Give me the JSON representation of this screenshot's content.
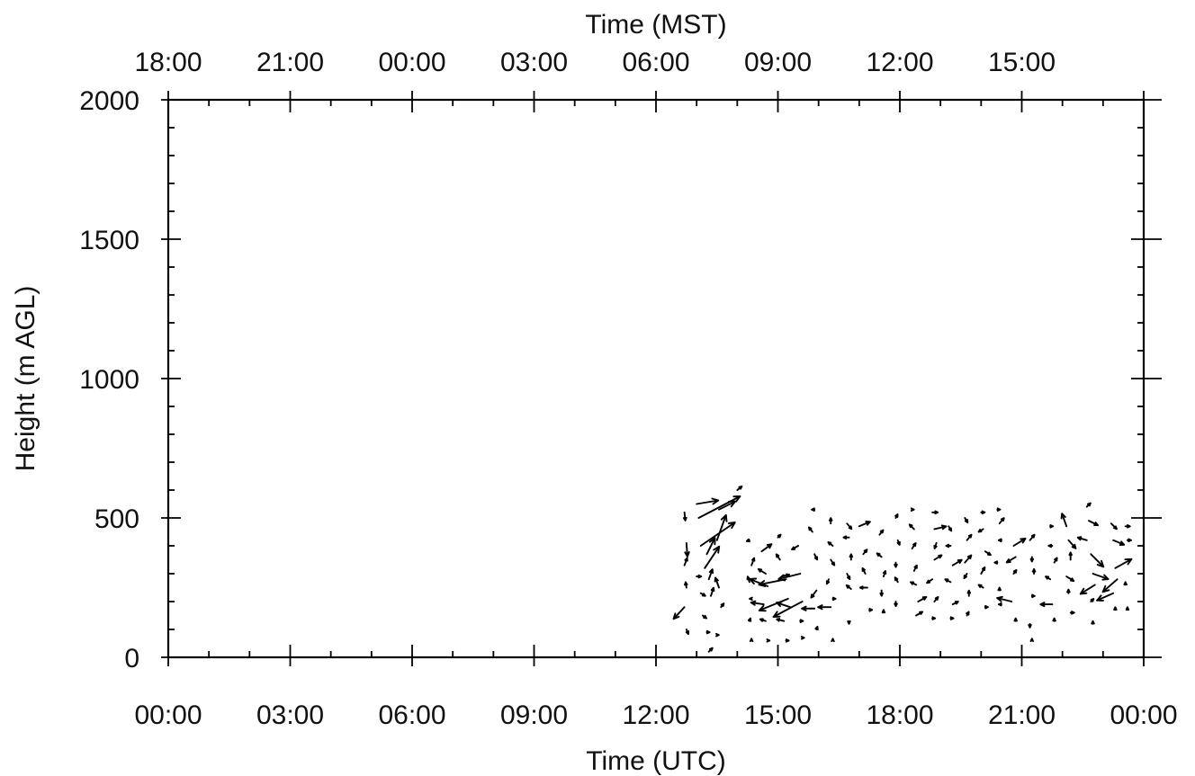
{
  "colors": {
    "ink": "#000000",
    "background": "#ffffff"
  },
  "chart_data": {
    "type": "scatter",
    "subtype": "wind-vector (quiver) time-height plot",
    "title": "",
    "xlabel": "Time (UTC)",
    "x2label": "Time (MST)",
    "ylabel": "Height (m AGL)",
    "xlim_hours_utc": [
      0,
      24
    ],
    "ylim": [
      0,
      2000
    ],
    "grid": false,
    "legend": "none",
    "x_ticks": {
      "hours": [
        0,
        3,
        6,
        9,
        12,
        15,
        18,
        21,
        24
      ],
      "labels": [
        "00:00",
        "03:00",
        "06:00",
        "09:00",
        "12:00",
        "15:00",
        "18:00",
        "21:00",
        "00:00"
      ]
    },
    "x2_ticks": {
      "hours": [
        0,
        3,
        6,
        9,
        12,
        15,
        18,
        21
      ],
      "labels": [
        "18:00",
        "21:00",
        "00:00",
        "03:00",
        "06:00",
        "09:00",
        "12:00",
        "15:00"
      ]
    },
    "y_ticks": {
      "values": [
        0,
        500,
        1000,
        1500,
        2000
      ],
      "labels": [
        "0",
        "500",
        "1000",
        "1500",
        "2000"
      ]
    },
    "vector_units_note": "u, v are relative arrow components read from the figure (arbitrary wind-speed units)",
    "vectors": [
      {
        "t": 12.7,
        "h": 520,
        "u": 0.1,
        "v": -0.9
      },
      {
        "t": 12.75,
        "h": 410,
        "u": 0.1,
        "v": -1.5
      },
      {
        "t": 12.7,
        "h": 330,
        "u": 0.3,
        "v": 0.8
      },
      {
        "t": 12.75,
        "h": 250,
        "u": -0.1,
        "v": 0.6
      },
      {
        "t": 12.7,
        "h": 180,
        "u": -1.2,
        "v": -1.3
      },
      {
        "t": 12.75,
        "h": 100,
        "u": 0.2,
        "v": -0.5
      },
      {
        "t": 13.0,
        "h": 550,
        "u": 2.4,
        "v": 0.4
      },
      {
        "t": 13.05,
        "h": 500,
        "u": 4.6,
        "v": 2.4
      },
      {
        "t": 13.1,
        "h": 400,
        "u": 3.8,
        "v": 2.6
      },
      {
        "t": 13.2,
        "h": 320,
        "u": 1.6,
        "v": 2.4
      },
      {
        "t": 13.25,
        "h": 370,
        "u": 0.9,
        "v": 1.8
      },
      {
        "t": 13.3,
        "h": 280,
        "u": 0.4,
        "v": 1.1
      },
      {
        "t": 13.35,
        "h": 220,
        "u": 0.3,
        "v": 0.9
      },
      {
        "t": 13.0,
        "h": 290,
        "u": 0.5,
        "v": 0.0
      },
      {
        "t": 13.1,
        "h": 230,
        "u": 0.5,
        "v": -0.3
      },
      {
        "t": 13.15,
        "h": 150,
        "u": 0.4,
        "v": -0.3
      },
      {
        "t": 13.25,
        "h": 90,
        "u": 0.3,
        "v": 0.0
      },
      {
        "t": 13.3,
        "h": 20,
        "u": 0.4,
        "v": 0.4
      },
      {
        "t": 13.5,
        "h": 80,
        "u": 0.2,
        "v": 0.0
      },
      {
        "t": 13.55,
        "h": 530,
        "u": 1.8,
        "v": 0.9
      },
      {
        "t": 13.5,
        "h": 420,
        "u": 1.0,
        "v": 2.8
      },
      {
        "t": 13.55,
        "h": 250,
        "u": -0.4,
        "v": 1.1
      },
      {
        "t": 13.6,
        "h": 180,
        "u": 0.3,
        "v": 0.4
      },
      {
        "t": 14.0,
        "h": 600,
        "u": 0.5,
        "v": 0.4
      },
      {
        "t": 14.3,
        "h": 420,
        "u": -0.3,
        "v": -0.1
      },
      {
        "t": 14.35,
        "h": 330,
        "u": 0.3,
        "v": 0.8
      },
      {
        "t": 14.3,
        "h": 270,
        "u": -0.2,
        "v": 0.6
      },
      {
        "t": 14.35,
        "h": 210,
        "u": -0.2,
        "v": 0.0
      },
      {
        "t": 14.3,
        "h": 130,
        "u": 0.1,
        "v": 0.3
      },
      {
        "t": 14.35,
        "h": 60,
        "u": 0.0,
        "v": 0.2
      },
      {
        "t": 14.6,
        "h": 380,
        "u": 1.1,
        "v": 0.8
      },
      {
        "t": 14.7,
        "h": 300,
        "u": -0.8,
        "v": 0.5
      },
      {
        "t": 14.75,
        "h": 255,
        "u": -2.0,
        "v": 0.8
      },
      {
        "t": 14.65,
        "h": 190,
        "u": -1.4,
        "v": 0.2
      },
      {
        "t": 14.7,
        "h": 130,
        "u": -0.6,
        "v": 0.2
      },
      {
        "t": 14.75,
        "h": 60,
        "u": 0.2,
        "v": 0.0
      },
      {
        "t": 15.0,
        "h": 430,
        "u": 0.3,
        "v": 0.3
      },
      {
        "t": 15.05,
        "h": 350,
        "u": -0.4,
        "v": 0.6
      },
      {
        "t": 15.1,
        "h": 290,
        "u": 0.8,
        "v": 0.2
      },
      {
        "t": 15.2,
        "h": 280,
        "u": -3.0,
        "v": -0.6
      },
      {
        "t": 15.25,
        "h": 210,
        "u": -3.2,
        "v": -1.3
      },
      {
        "t": 15.3,
        "h": 180,
        "u": -1.5,
        "v": 0.5
      },
      {
        "t": 15.15,
        "h": 130,
        "u": -0.8,
        "v": 0.2
      },
      {
        "t": 15.2,
        "h": 60,
        "u": 0.3,
        "v": 0.0
      },
      {
        "t": 15.5,
        "h": 400,
        "u": -0.7,
        "v": -0.4
      },
      {
        "t": 15.55,
        "h": 300,
        "u": -2.4,
        "v": -0.6
      },
      {
        "t": 15.6,
        "h": 200,
        "u": -3.2,
        "v": -1.7
      },
      {
        "t": 15.55,
        "h": 130,
        "u": 0.3,
        "v": 0.0
      },
      {
        "t": 15.6,
        "h": 70,
        "u": 0.2,
        "v": 0.0
      },
      {
        "t": 15.9,
        "h": 530,
        "u": -0.3,
        "v": 0.0
      },
      {
        "t": 15.85,
        "h": 450,
        "u": -0.4,
        "v": 0.5
      },
      {
        "t": 15.9,
        "h": 370,
        "u": 0.3,
        "v": -0.6
      },
      {
        "t": 15.95,
        "h": 240,
        "u": -0.6,
        "v": -0.8
      },
      {
        "t": 15.9,
        "h": 175,
        "u": -1.4,
        "v": 0.0
      },
      {
        "t": 15.95,
        "h": 100,
        "u": 0.1,
        "v": 0.3
      },
      {
        "t": 16.3,
        "h": 480,
        "u": 0.0,
        "v": 0.6
      },
      {
        "t": 16.35,
        "h": 400,
        "u": -0.5,
        "v": 0.4
      },
      {
        "t": 16.3,
        "h": 350,
        "u": 0.4,
        "v": -0.6
      },
      {
        "t": 16.25,
        "h": 280,
        "u": -0.2,
        "v": -0.5
      },
      {
        "t": 16.35,
        "h": 210,
        "u": 0.3,
        "v": 0.0
      },
      {
        "t": 16.3,
        "h": 180,
        "u": -1.4,
        "v": 0.0
      },
      {
        "t": 16.35,
        "h": 60,
        "u": 0.0,
        "v": 0.2
      },
      {
        "t": 16.7,
        "h": 480,
        "u": 0.5,
        "v": -0.6
      },
      {
        "t": 16.75,
        "h": 430,
        "u": -0.6,
        "v": 0.0
      },
      {
        "t": 16.8,
        "h": 350,
        "u": 0.0,
        "v": 0.6
      },
      {
        "t": 16.7,
        "h": 300,
        "u": 0.3,
        "v": -0.6
      },
      {
        "t": 16.8,
        "h": 245,
        "u": -0.5,
        "v": 0.4
      },
      {
        "t": 16.75,
        "h": 130,
        "u": 0.0,
        "v": -0.3
      },
      {
        "t": 17.0,
        "h": 470,
        "u": 1.2,
        "v": 0.5
      },
      {
        "t": 17.1,
        "h": 370,
        "u": 0.4,
        "v": 0.5
      },
      {
        "t": 17.15,
        "h": 300,
        "u": -0.3,
        "v": 0.6
      },
      {
        "t": 17.2,
        "h": 250,
        "u": -0.8,
        "v": 0.0
      },
      {
        "t": 17.25,
        "h": 170,
        "u": 0.3,
        "v": 0.0
      },
      {
        "t": 17.5,
        "h": 440,
        "u": 0.4,
        "v": 0.5
      },
      {
        "t": 17.55,
        "h": 360,
        "u": -0.5,
        "v": 0.4
      },
      {
        "t": 17.6,
        "h": 290,
        "u": 0.2,
        "v": 0.6
      },
      {
        "t": 17.55,
        "h": 240,
        "u": 0.0,
        "v": -0.6
      },
      {
        "t": 17.6,
        "h": 160,
        "u": 0.0,
        "v": 0.3
      },
      {
        "t": 17.9,
        "h": 500,
        "u": 0.2,
        "v": 0.4
      },
      {
        "t": 17.95,
        "h": 420,
        "u": 0.2,
        "v": -0.5
      },
      {
        "t": 17.9,
        "h": 340,
        "u": 0.0,
        "v": -0.5
      },
      {
        "t": 17.95,
        "h": 270,
        "u": -0.3,
        "v": 0.5
      },
      {
        "t": 17.9,
        "h": 200,
        "u": 0.0,
        "v": -0.5
      },
      {
        "t": 18.3,
        "h": 530,
        "u": 0.2,
        "v": 0.0
      },
      {
        "t": 18.35,
        "h": 460,
        "u": -0.5,
        "v": 0.5
      },
      {
        "t": 18.3,
        "h": 390,
        "u": 0.4,
        "v": 0.6
      },
      {
        "t": 18.35,
        "h": 310,
        "u": 0.3,
        "v": 0.6
      },
      {
        "t": 18.4,
        "h": 260,
        "u": -0.6,
        "v": 0.3
      },
      {
        "t": 18.45,
        "h": 200,
        "u": 0.9,
        "v": 0.5
      },
      {
        "t": 18.4,
        "h": 150,
        "u": 0.7,
        "v": 0.4
      },
      {
        "t": 18.8,
        "h": 520,
        "u": 0.6,
        "v": 0.0
      },
      {
        "t": 18.85,
        "h": 460,
        "u": 1.3,
        "v": 0.3
      },
      {
        "t": 18.9,
        "h": 410,
        "u": -0.2,
        "v": -0.6
      },
      {
        "t": 18.85,
        "h": 350,
        "u": 0.8,
        "v": 0.5
      },
      {
        "t": 18.8,
        "h": 280,
        "u": -0.6,
        "v": -0.4
      },
      {
        "t": 18.85,
        "h": 200,
        "u": 0.4,
        "v": 0.5
      },
      {
        "t": 18.8,
        "h": 140,
        "u": 0.3,
        "v": 0.0
      },
      {
        "t": 19.2,
        "h": 470,
        "u": 0.3,
        "v": -0.5
      },
      {
        "t": 19.25,
        "h": 400,
        "u": -0.5,
        "v": 0.0
      },
      {
        "t": 19.3,
        "h": 330,
        "u": 1.0,
        "v": 0.6
      },
      {
        "t": 19.25,
        "h": 270,
        "u": -0.6,
        "v": 0.3
      },
      {
        "t": 19.3,
        "h": 190,
        "u": 0.6,
        "v": 0.3
      },
      {
        "t": 19.25,
        "h": 140,
        "u": 0.3,
        "v": 0.0
      },
      {
        "t": 19.6,
        "h": 500,
        "u": 0.3,
        "v": -0.5
      },
      {
        "t": 19.65,
        "h": 420,
        "u": 0.5,
        "v": 0.6
      },
      {
        "t": 19.6,
        "h": 340,
        "u": 0.7,
        "v": 0.8
      },
      {
        "t": 19.65,
        "h": 300,
        "u": -0.3,
        "v": -0.5
      },
      {
        "t": 19.7,
        "h": 220,
        "u": 0.0,
        "v": 0.6
      },
      {
        "t": 19.65,
        "h": 150,
        "u": 0.2,
        "v": 0.4
      },
      {
        "t": 20.0,
        "h": 520,
        "u": 0.4,
        "v": 0.0
      },
      {
        "t": 20.05,
        "h": 460,
        "u": -0.5,
        "v": -0.3
      },
      {
        "t": 20.1,
        "h": 380,
        "u": 0.6,
        "v": -0.4
      },
      {
        "t": 20.0,
        "h": 300,
        "u": 0.4,
        "v": 0.7
      },
      {
        "t": 20.05,
        "h": 250,
        "u": -0.5,
        "v": 0.3
      },
      {
        "t": 20.1,
        "h": 180,
        "u": 0.3,
        "v": 0.0
      },
      {
        "t": 20.4,
        "h": 530,
        "u": 0.3,
        "v": 0.0
      },
      {
        "t": 20.45,
        "h": 480,
        "u": 0.5,
        "v": 0.6
      },
      {
        "t": 20.5,
        "h": 420,
        "u": -0.3,
        "v": 0.0
      },
      {
        "t": 20.4,
        "h": 340,
        "u": -0.3,
        "v": 0.0
      },
      {
        "t": 20.45,
        "h": 240,
        "u": 0.0,
        "v": 0.3
      },
      {
        "t": 20.5,
        "h": 190,
        "u": -0.3,
        "v": 0.0
      },
      {
        "t": 20.8,
        "h": 400,
        "u": 1.3,
        "v": 0.8
      },
      {
        "t": 20.85,
        "h": 360,
        "u": -1.0,
        "v": -0.6
      },
      {
        "t": 20.8,
        "h": 300,
        "u": 0.3,
        "v": 0.4
      },
      {
        "t": 20.75,
        "h": 200,
        "u": -1.6,
        "v": 0.4
      },
      {
        "t": 20.85,
        "h": 130,
        "u": 0.0,
        "v": 0.3
      },
      {
        "t": 21.2,
        "h": 420,
        "u": 0.5,
        "v": 0.6
      },
      {
        "t": 21.25,
        "h": 360,
        "u": 0.0,
        "v": -0.5
      },
      {
        "t": 21.3,
        "h": 300,
        "u": 0.0,
        "v": 0.5
      },
      {
        "t": 21.25,
        "h": 220,
        "u": 0.3,
        "v": 0.0
      },
      {
        "t": 21.2,
        "h": 120,
        "u": 0.0,
        "v": -0.4
      },
      {
        "t": 21.25,
        "h": 60,
        "u": 0.0,
        "v": 0.2
      },
      {
        "t": 21.7,
        "h": 470,
        "u": 0.3,
        "v": 0.0
      },
      {
        "t": 21.75,
        "h": 400,
        "u": -0.4,
        "v": 0.0
      },
      {
        "t": 21.8,
        "h": 340,
        "u": 0.3,
        "v": 0.5
      },
      {
        "t": 21.7,
        "h": 280,
        "u": -0.5,
        "v": 0.3
      },
      {
        "t": 21.75,
        "h": 190,
        "u": -1.3,
        "v": 0.0
      },
      {
        "t": 21.8,
        "h": 130,
        "u": 0.0,
        "v": 0.3
      },
      {
        "t": 22.1,
        "h": 470,
        "u": -0.5,
        "v": 1.4
      },
      {
        "t": 22.15,
        "h": 420,
        "u": 0.8,
        "v": -0.9
      },
      {
        "t": 22.2,
        "h": 350,
        "u": 0.0,
        "v": 0.8
      },
      {
        "t": 22.1,
        "h": 290,
        "u": 0.8,
        "v": -0.5
      },
      {
        "t": 22.15,
        "h": 230,
        "u": 0.0,
        "v": 0.4
      },
      {
        "t": 22.2,
        "h": 160,
        "u": 0.4,
        "v": 0.0
      },
      {
        "t": 22.6,
        "h": 540,
        "u": 0.4,
        "v": 0.4
      },
      {
        "t": 22.65,
        "h": 490,
        "u": 1.0,
        "v": -0.5
      },
      {
        "t": 22.6,
        "h": 420,
        "u": -1.0,
        "v": 0.3
      },
      {
        "t": 22.7,
        "h": 370,
        "u": 1.4,
        "v": -1.4
      },
      {
        "t": 22.75,
        "h": 300,
        "u": 1.7,
        "v": -0.6
      },
      {
        "t": 22.8,
        "h": 260,
        "u": -1.6,
        "v": -1.0
      },
      {
        "t": 22.7,
        "h": 200,
        "u": 0.3,
        "v": 0.3
      },
      {
        "t": 22.75,
        "h": 120,
        "u": 0.0,
        "v": 0.3
      },
      {
        "t": 23.2,
        "h": 480,
        "u": 0.6,
        "v": -0.6
      },
      {
        "t": 23.25,
        "h": 420,
        "u": 1.2,
        "v": -0.5
      },
      {
        "t": 23.3,
        "h": 320,
        "u": 1.8,
        "v": 1.0
      },
      {
        "t": 23.35,
        "h": 280,
        "u": -1.6,
        "v": -1.4
      },
      {
        "t": 23.25,
        "h": 230,
        "u": -1.8,
        "v": -0.8
      },
      {
        "t": 23.3,
        "h": 170,
        "u": 0.0,
        "v": 0.3
      },
      {
        "t": 23.55,
        "h": 470,
        "u": 0.5,
        "v": 0.0
      },
      {
        "t": 23.6,
        "h": 420,
        "u": 0.4,
        "v": 0.0
      },
      {
        "t": 23.55,
        "h": 260,
        "u": 0.0,
        "v": 0.3
      },
      {
        "t": 23.6,
        "h": 170,
        "u": 0.0,
        "v": 0.3
      }
    ]
  }
}
